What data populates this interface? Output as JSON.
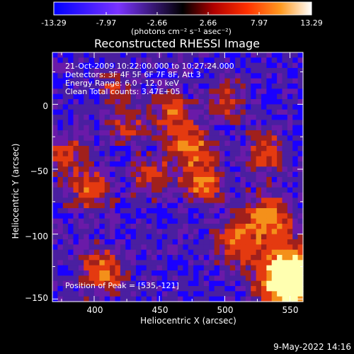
{
  "colorbar": {
    "ticks": [
      "-13.29",
      "-7.97",
      "-2.66",
      "2.66",
      "7.97",
      "13.29"
    ],
    "range": [
      -13.29,
      13.29
    ],
    "units": "(photons cm⁻² s⁻¹ asec⁻²)"
  },
  "chart_data": {
    "type": "heatmap",
    "title": "Reconstructed RHESSI Image",
    "xlabel": "Heliocentric X (arcsec)",
    "ylabel": "Heliocentric Y (arcsec)",
    "xlim": [
      368,
      560
    ],
    "ylim": [
      -152,
      40
    ],
    "xticks": [
      "400",
      "450",
      "500",
      "550"
    ],
    "yticks": [
      "0",
      "−50",
      "−100",
      "−150"
    ],
    "xtick_values": [
      400,
      450,
      500,
      550
    ],
    "ytick_values": [
      0,
      -50,
      -100,
      -150
    ],
    "grid": false,
    "colormap": [
      "#1a00ff",
      "#6a1aa8",
      "#4a1fa0",
      "#a0201c",
      "#e43a10",
      "#f4901a",
      "#ffffb0"
    ],
    "peak": {
      "x": 535,
      "y": -121
    },
    "value_range": [
      -13.29,
      13.29
    ]
  },
  "annotations": {
    "time": "21-Oct-2009 10:22:00.000 to 10:27:24.000",
    "detectors": "Detectors: 3F 4F 5F 6F 7F 8F, Att 3",
    "energy": "Energy Range: 6.0 - 12.0 keV",
    "clean": "Clean      Total counts: 3.47E+05",
    "peak": "Position of Peak = [535,-121]"
  },
  "footer": {
    "timestamp": "9-May-2022 14:16"
  }
}
